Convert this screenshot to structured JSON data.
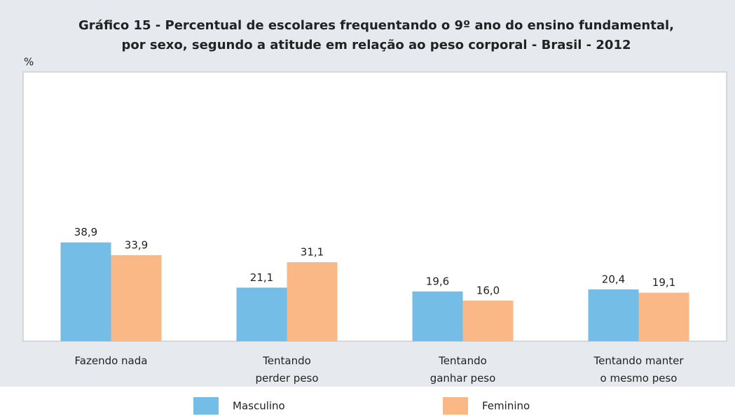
{
  "chart_data": {
    "type": "bar",
    "title": [
      "Gráfico 15 - Percentual de escolares frequentando o 9º ano do ensino fundamental,",
      "por sexo, segundo a atitude em relação ao peso corporal - Brasil - 2012"
    ],
    "y_axis_label": "%",
    "categories": [
      "Fazendo nada",
      "Tentando\nperder peso",
      "Tentando\nganhar peso",
      "Tentando manter\no mesmo peso"
    ],
    "series": [
      {
        "name": "Masculino",
        "color": "#74bde7",
        "values": [
          38.9,
          21.1,
          19.6,
          20.4
        ],
        "value_labels": [
          "38,9",
          "21,1",
          "19,6",
          "20,4"
        ]
      },
      {
        "name": "Feminino",
        "color": "#f9b886",
        "values": [
          33.9,
          31.1,
          16.0,
          19.1
        ],
        "value_labels": [
          "33,9",
          "31,1",
          "16,0",
          "19,1"
        ]
      }
    ],
    "ylim": [
      0,
      106
    ],
    "legend": "bottom"
  }
}
